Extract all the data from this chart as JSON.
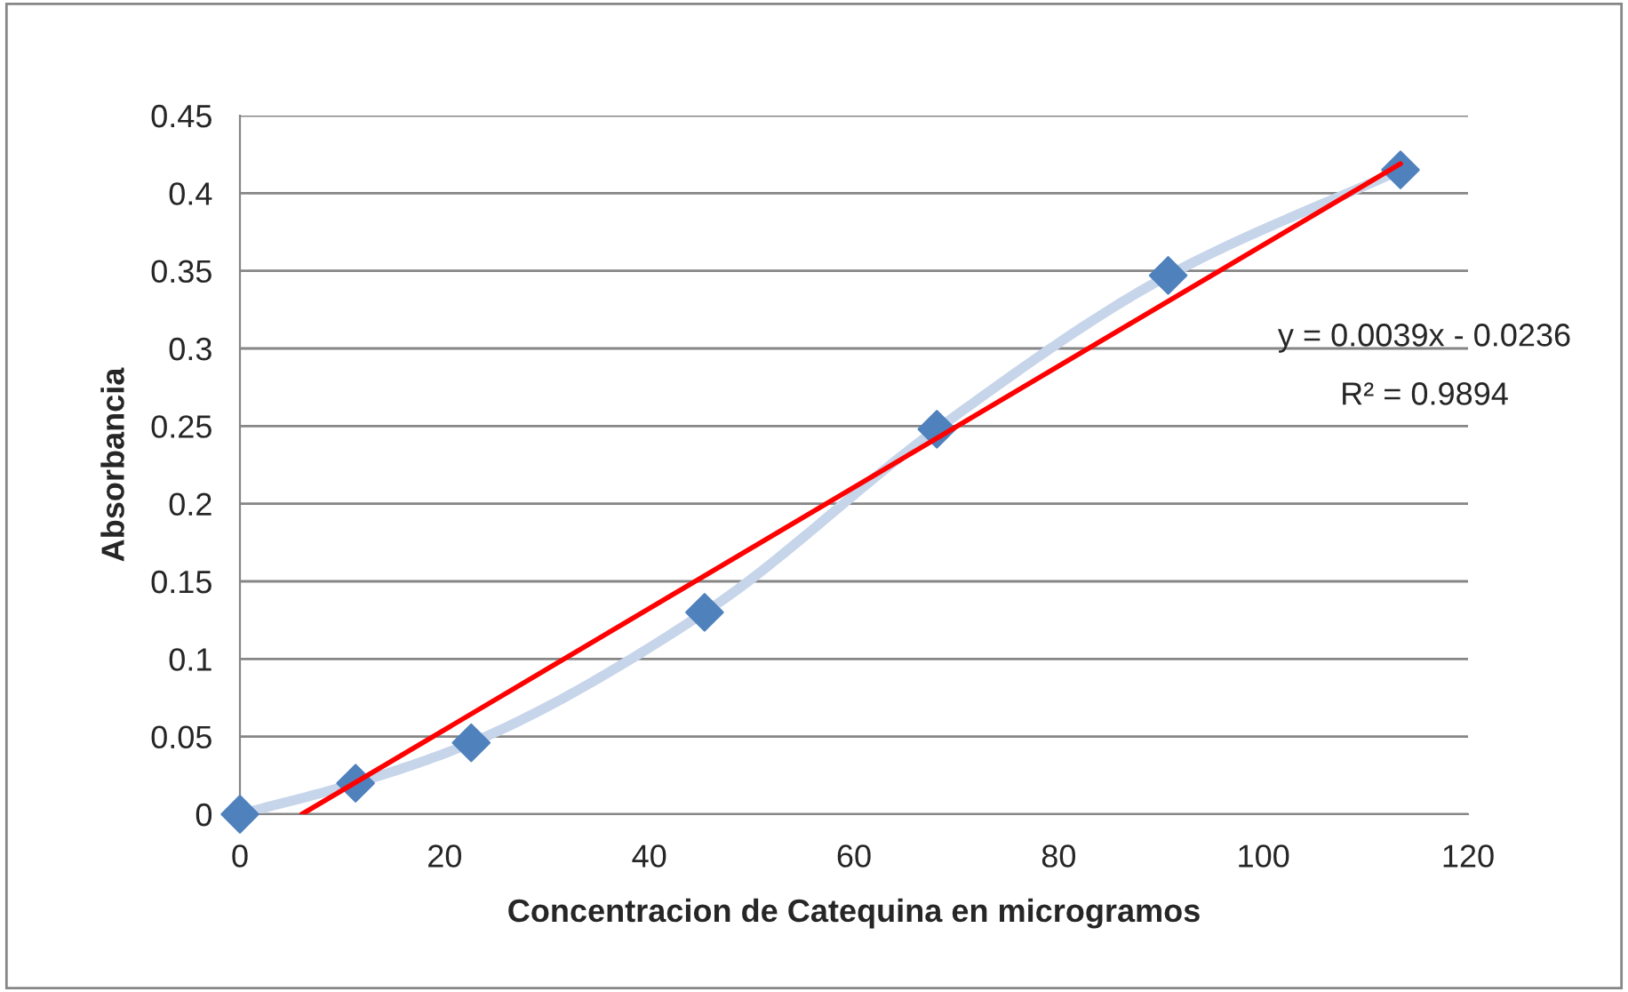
{
  "chart_data": {
    "type": "line",
    "xlabel": "Concentracion de Catequina en microgramos",
    "ylabel": "Absorbancia",
    "series": [
      {
        "color": "#c6d5ea",
        "marker": "none",
        "x": [
          0,
          11.3,
          22.6,
          45.4,
          68.1,
          90.7,
          113.4
        ],
        "values": [
          0,
          0.02,
          0.046,
          0.13,
          0.248,
          0.347,
          0.415
        ]
      },
      {
        "type": "scatter",
        "color": "#4f81bd",
        "marker": "diamond",
        "x": [
          0,
          11.3,
          22.6,
          45.4,
          68.1,
          90.7,
          113.4
        ],
        "values": [
          0,
          0.02,
          0.046,
          0.13,
          0.248,
          0.347,
          0.415
        ]
      },
      {
        "color": "#ff0000",
        "marker": "none",
        "x": [
          6.05,
          113.4
        ],
        "values": [
          0,
          0.419
        ]
      }
    ],
    "xlim": [
      0,
      120
    ],
    "xticks": [
      0,
      20,
      40,
      60,
      80,
      100,
      120
    ],
    "ylim": [
      0,
      0.45
    ],
    "yticks": [
      0,
      0.05,
      0.1,
      0.15,
      0.2,
      0.25,
      0.3,
      0.35,
      0.4,
      0.45
    ],
    "grid": "y",
    "legend": false,
    "annotations": [
      "y = 0.0039x - 0.0236",
      "R² = 0.9894"
    ]
  }
}
